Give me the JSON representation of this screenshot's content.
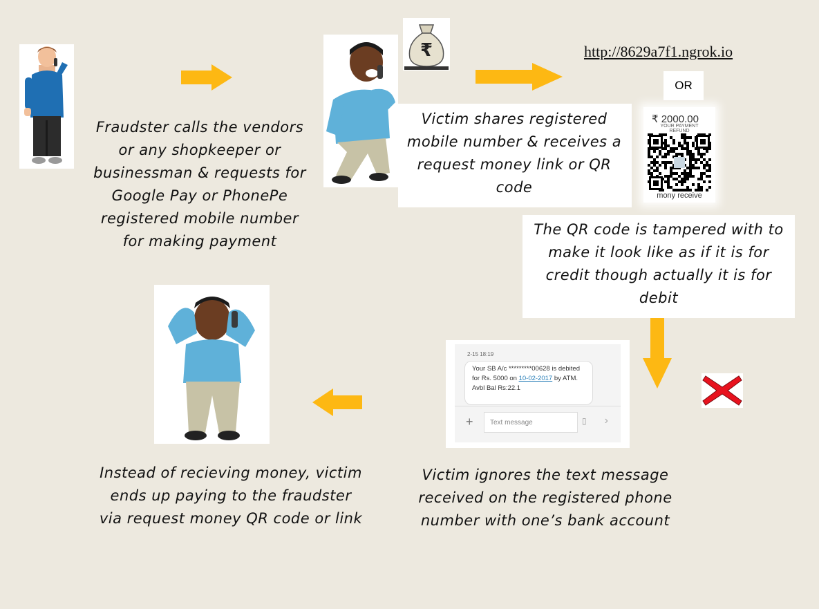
{
  "captions": {
    "step1": "Fraudster calls the vendors or any shopkeeper or businessman & requests for Google Pay or PhonePe registered mobile number for making payment",
    "step2": "Victim shares registered mobile number & receives a request money link or QR code",
    "step3": "The QR code is tampered with to make it look like as if it is for credit though actually it is for debit",
    "step4": "Victim ignores the text message received on the registered phone number with one’s bank account",
    "step5": "Instead of recieving money, victim ends up paying to the fraudster via request money QR code or link"
  },
  "link": {
    "url": "http://8629a7f1.ngrok.io",
    "or_label": "OR"
  },
  "qr": {
    "amount": "₹ 2000.00",
    "line1": "YOUR PAYMENT",
    "line2": "REFUND",
    "footer": "mony receive"
  },
  "money_bag": {
    "symbol": "₹"
  },
  "sms": {
    "time": "2-15 18:19",
    "message_part1": "Your SB A/c *********00628 is debited for Rs. 5000 on ",
    "message_date": "10-02-2017",
    "message_part2": " by ATM. Avbl Bal Rs:22.1",
    "input_placeholder": "Text message"
  },
  "colors": {
    "background": "#ede9df",
    "arrow": "#fdb813",
    "cross": "#e8121e"
  },
  "icons": [
    "fraudster-illustration",
    "victim-calling-illustration",
    "money-bag-icon",
    "qr-code",
    "victim-distressed-illustration",
    "red-cross-icon",
    "arrow-right-icon",
    "arrow-down-icon",
    "arrow-left-icon"
  ]
}
